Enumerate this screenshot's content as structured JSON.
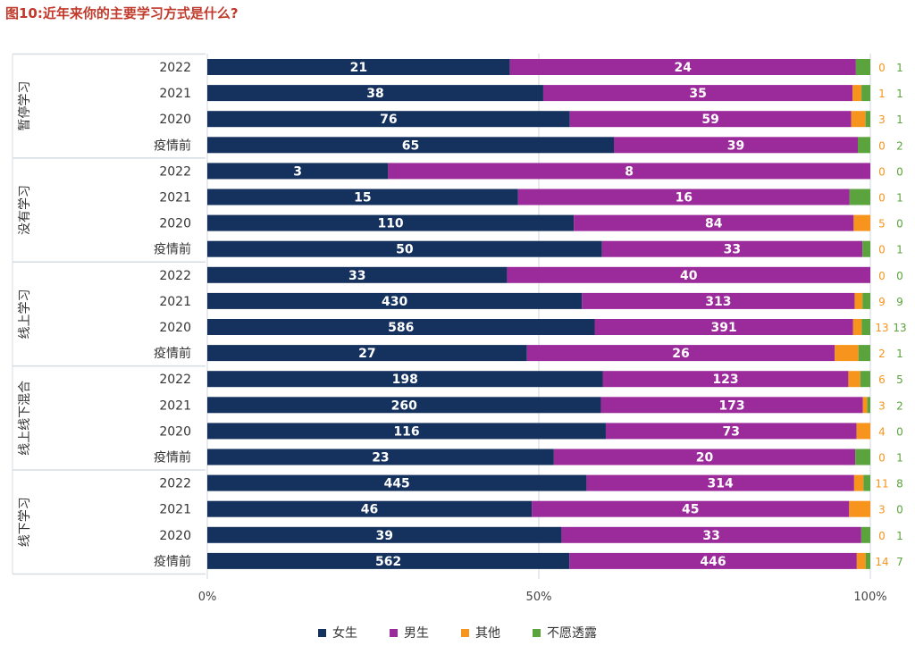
{
  "title": "图10:近年来你的主要学习方式是什么?",
  "colors": {
    "female": "#15325e",
    "male": "#9b2a9b",
    "other": "#f7941d",
    "undisclosed": "#5ba33d",
    "grid": "#cfd6dc",
    "group_line": "#d5dde3"
  },
  "legend": [
    {
      "key": "female",
      "label": "女生"
    },
    {
      "key": "male",
      "label": "男生"
    },
    {
      "key": "other",
      "label": "其他"
    },
    {
      "key": "undisclosed",
      "label": "不愿透露"
    }
  ],
  "chart_data": {
    "type": "bar",
    "stacked": true,
    "normalized_100": true,
    "title": "图10:近年来你的主要学习方式是什么?",
    "x_ticks": [
      "0%",
      "50%",
      "100%"
    ],
    "xlim": [
      0,
      100
    ],
    "series_names": [
      "女生",
      "男生",
      "其他",
      "不愿透露"
    ],
    "groups": [
      {
        "name": "暂停学习",
        "rows": [
          {
            "label": "2022",
            "values": [
              21,
              24,
              0,
              1
            ]
          },
          {
            "label": "2021",
            "values": [
              38,
              35,
              1,
              1
            ]
          },
          {
            "label": "2020",
            "values": [
              76,
              59,
              3,
              1
            ]
          },
          {
            "label": "疫情前",
            "values": [
              65,
              39,
              0,
              2
            ]
          }
        ]
      },
      {
        "name": "没有学习",
        "rows": [
          {
            "label": "2022",
            "values": [
              3,
              8,
              0,
              0
            ]
          },
          {
            "label": "2021",
            "values": [
              15,
              16,
              0,
              1
            ]
          },
          {
            "label": "2020",
            "values": [
              110,
              84,
              5,
              0
            ]
          },
          {
            "label": "疫情前",
            "values": [
              50,
              33,
              0,
              1
            ]
          }
        ]
      },
      {
        "name": "线上学习",
        "rows": [
          {
            "label": "2022",
            "values": [
              33,
              40,
              0,
              0
            ]
          },
          {
            "label": "2021",
            "values": [
              430,
              313,
              9,
              9
            ]
          },
          {
            "label": "2020",
            "values": [
              586,
              391,
              13,
              13
            ]
          },
          {
            "label": "疫情前",
            "values": [
              27,
              26,
              2,
              1
            ]
          }
        ]
      },
      {
        "name": "线上线下混合",
        "rows": [
          {
            "label": "2022",
            "values": [
              198,
              123,
              6,
              5
            ]
          },
          {
            "label": "2021",
            "values": [
              260,
              173,
              3,
              2
            ]
          },
          {
            "label": "2020",
            "values": [
              116,
              73,
              4,
              0
            ]
          },
          {
            "label": "疫情前",
            "values": [
              23,
              20,
              0,
              1
            ]
          }
        ]
      },
      {
        "name": "线下学习",
        "rows": [
          {
            "label": "2022",
            "values": [
              445,
              314,
              11,
              8
            ]
          },
          {
            "label": "2021",
            "values": [
              46,
              45,
              3,
              0
            ]
          },
          {
            "label": "2020",
            "values": [
              39,
              33,
              0,
              1
            ]
          },
          {
            "label": "疫情前",
            "values": [
              562,
              446,
              14,
              7
            ]
          }
        ]
      }
    ]
  }
}
